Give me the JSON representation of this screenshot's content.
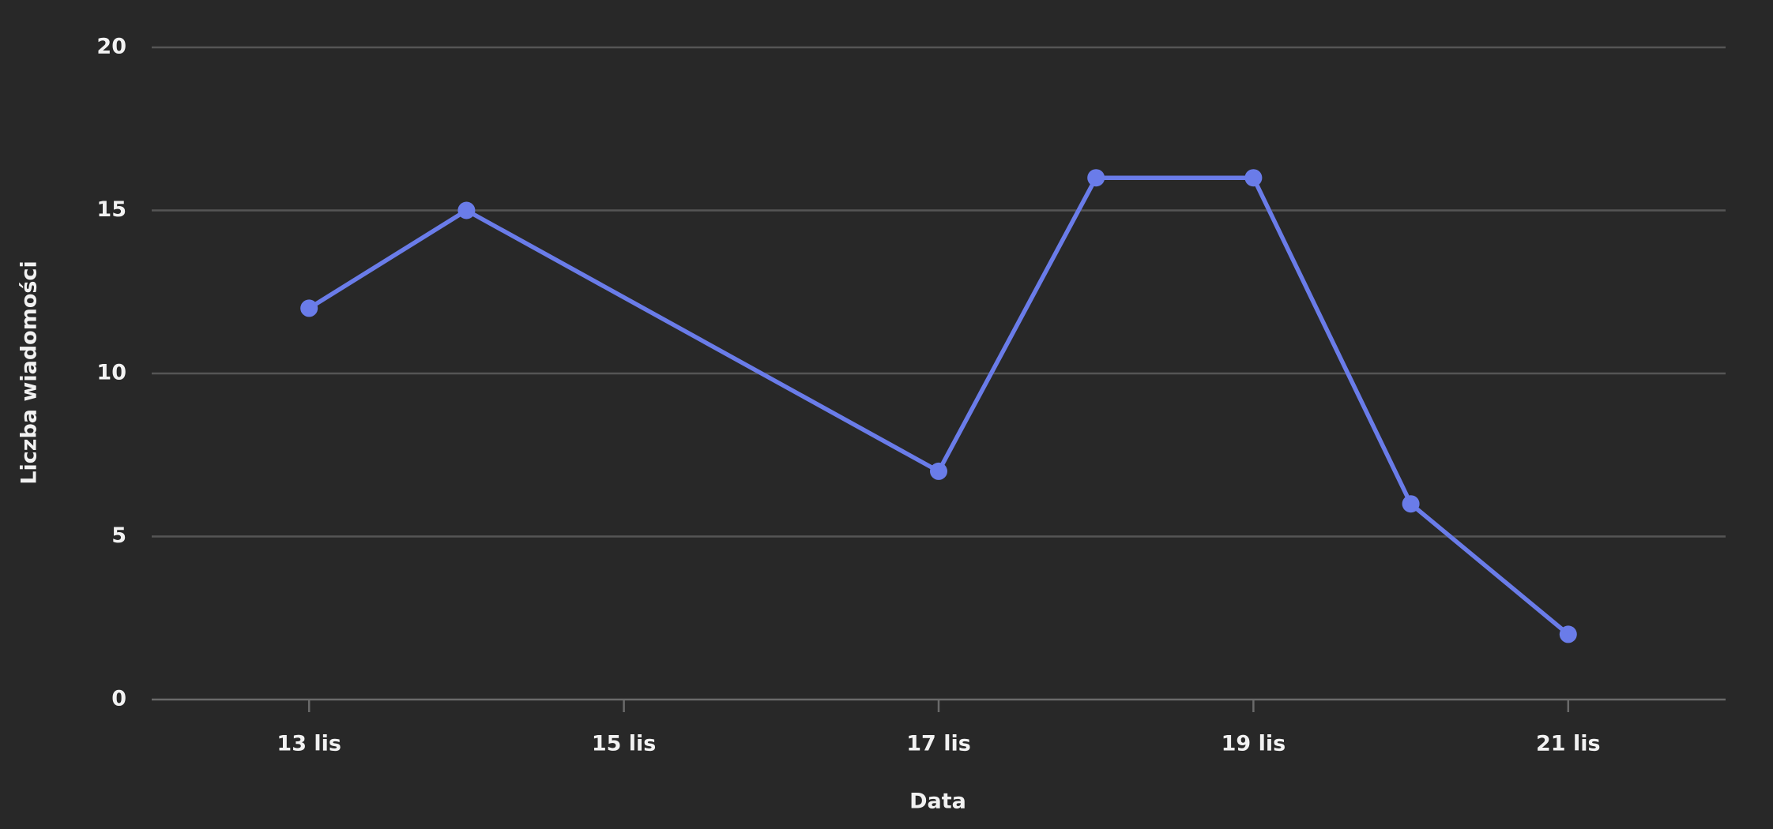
{
  "chart_data": {
    "type": "line",
    "x_label": "Data",
    "y_label": "Liczba wiadomości",
    "x": [
      13,
      14,
      17,
      18,
      19,
      20,
      21
    ],
    "series": [
      {
        "name": "Liczba wiadomości",
        "color": "#6a7ce9",
        "values": [
          12,
          15,
          7,
          16,
          16,
          6,
          2
        ]
      }
    ],
    "xlim": [
      12,
      22
    ],
    "xticks": [
      {
        "value": 13,
        "label": "13 lis"
      },
      {
        "value": 15,
        "label": "15 lis"
      },
      {
        "value": 17,
        "label": "17 lis"
      },
      {
        "value": 19,
        "label": "19 lis"
      },
      {
        "value": 21,
        "label": "21 lis"
      }
    ],
    "ylim": [
      0,
      20
    ],
    "yticks": [
      0,
      5,
      10,
      15,
      20
    ],
    "grid": true
  }
}
